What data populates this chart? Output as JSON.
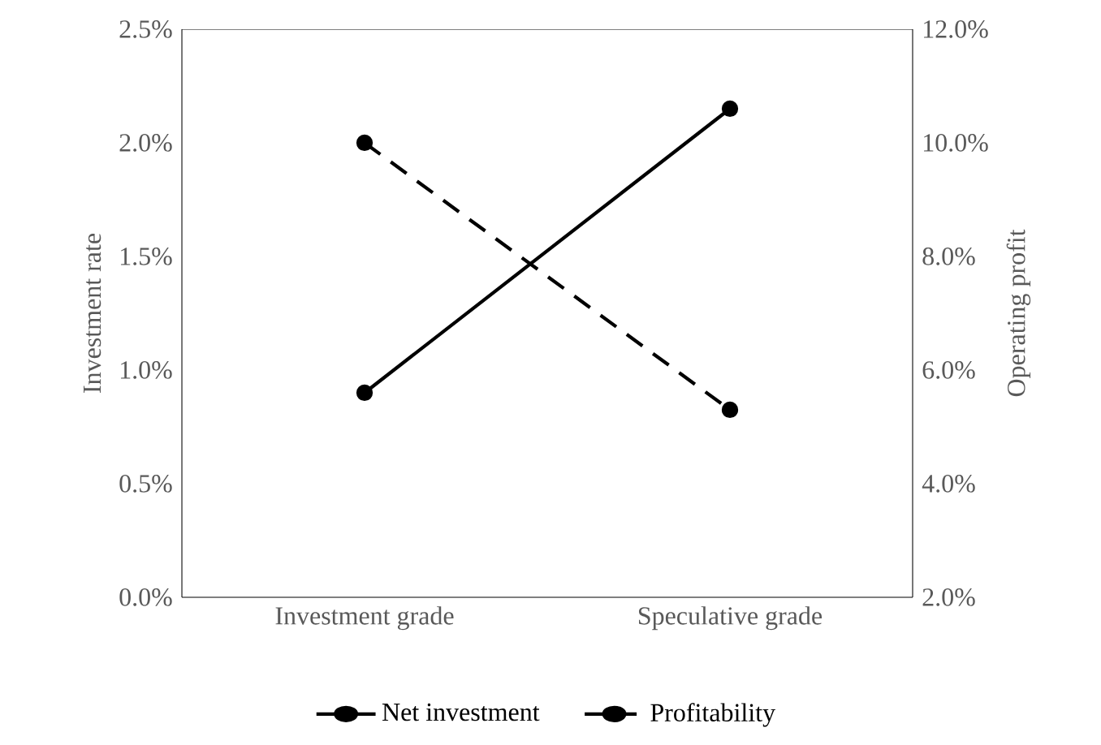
{
  "chart_data": {
    "type": "line",
    "categories": [
      "Investment grade",
      "Speculative grade"
    ],
    "ylabel": "Investment rate",
    "y2label": "Operating profit",
    "ylim": [
      0,
      2.5
    ],
    "yticks": [
      {
        "value": 0,
        "label": "0.0%"
      },
      {
        "value": 0.5,
        "label": "0.5%"
      },
      {
        "value": 1,
        "label": "1.0%"
      },
      {
        "value": 1.5,
        "label": "1.5%"
      },
      {
        "value": 2,
        "label": "2.0%"
      },
      {
        "value": 2.5,
        "label": "2.5%"
      }
    ],
    "y2lim": [
      2,
      12
    ],
    "y2ticks": [
      {
        "value": 2,
        "label": "2.0%"
      },
      {
        "value": 4,
        "label": "4.0%"
      },
      {
        "value": 6,
        "label": "6.0%"
      },
      {
        "value": 8,
        "label": "8.0%"
      },
      {
        "value": 10,
        "label": "10.0%"
      },
      {
        "value": 12,
        "label": "12.0%"
      }
    ],
    "series": [
      {
        "name": "Net investment",
        "color": "#000000",
        "values": [
          0.9,
          2.15
        ],
        "line_style": "solid"
      },
      {
        "name": "Profitability",
        "color": "#000000",
        "values": [
          10.0,
          5.3
        ],
        "axis": "y2",
        "line_style": "dashed"
      }
    ],
    "marker": "circle",
    "grid": false,
    "legend": "bottom"
  }
}
